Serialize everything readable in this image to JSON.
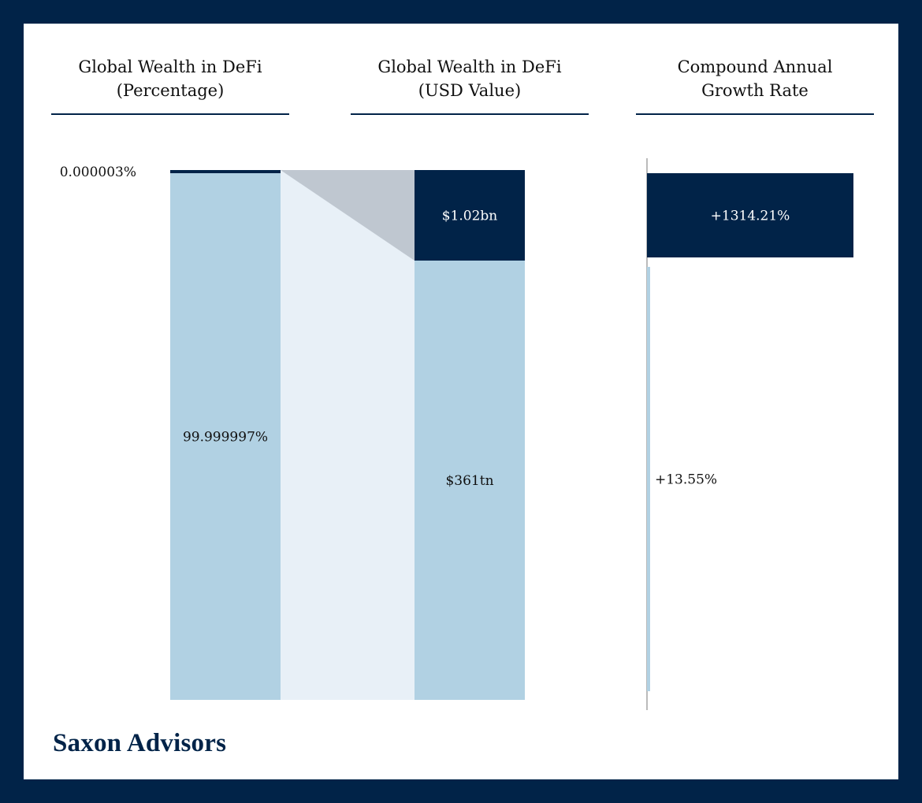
{
  "brand": "Saxon Advisors",
  "colors": {
    "navy": "#012348",
    "light_blue": "#b1d1e3",
    "connector_light": "#e8f0f7",
    "connector_gray": "#bfc7d0",
    "axis_gray": "#bbbbbb"
  },
  "chart_data": [
    {
      "type": "bar",
      "subtype": "stacked-100",
      "title_lines": [
        "Global Wealth in DeFi",
        "(Percentage)"
      ],
      "segments": [
        {
          "label": "0.000003%",
          "value": 3e-06,
          "color": "#012348",
          "label_color": "#111111"
        },
        {
          "label": "99.999997%",
          "value": 99.999997,
          "color": "#b1d1e3",
          "label_color": "#111111"
        }
      ]
    },
    {
      "type": "bar",
      "subtype": "stacked",
      "title_lines": [
        "Global Wealth in DeFi",
        "(USD Value)"
      ],
      "segments": [
        {
          "label": "$1.02bn",
          "value": 1.02,
          "unit": "bn USD",
          "color": "#012348",
          "label_color": "#ffffff"
        },
        {
          "label": "$361tn",
          "value": 361,
          "unit": "tn USD",
          "color": "#b1d1e3",
          "label_color": "#111111"
        }
      ]
    },
    {
      "type": "bar",
      "orientation": "horizontal",
      "title_lines": [
        "Compound Annual",
        "Growth Rate"
      ],
      "bars": [
        {
          "label": "+1314.21%",
          "value": 1314.21,
          "color": "#012348",
          "label_color": "#ffffff"
        },
        {
          "label": "+13.55%",
          "value": 13.55,
          "color": "#b1d1e3",
          "label_color": "#111111"
        }
      ]
    }
  ]
}
